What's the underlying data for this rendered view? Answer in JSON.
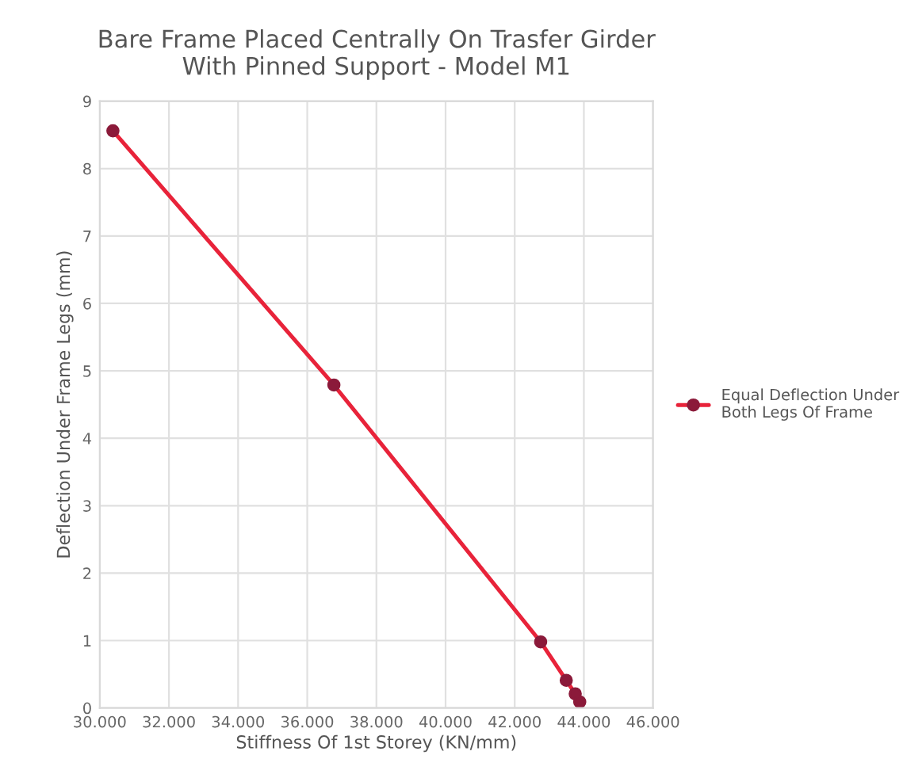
{
  "chart_data": {
    "type": "line",
    "title": "Bare Frame Placed Centrally On Trasfer Girder\nWith Pinned Support - Model M1",
    "xlabel": "Stiffness Of 1st Storey (KN/mm)",
    "ylabel": "Deflection Under Frame Legs (mm)",
    "x": [
      30380,
      36770,
      42750,
      43490,
      43750,
      43880
    ],
    "series": [
      {
        "name": "Equal Deflection Under\nBoth Legs Of Frame",
        "color": "#e8233a",
        "values": [
          8.56,
          4.79,
          0.98,
          0.41,
          0.21,
          0.09
        ]
      }
    ],
    "xlim": [
      30000,
      46000
    ],
    "xticks": [
      {
        "value": 30000,
        "label": "30.000"
      },
      {
        "value": 32000,
        "label": "32.000"
      },
      {
        "value": 34000,
        "label": "34.000"
      },
      {
        "value": 36000,
        "label": "36.000"
      },
      {
        "value": 38000,
        "label": "38.000"
      },
      {
        "value": 40000,
        "label": "40.000"
      },
      {
        "value": 42000,
        "label": "42.000"
      },
      {
        "value": 44000,
        "label": "44.000"
      },
      {
        "value": 46000,
        "label": "46.000"
      }
    ],
    "ylim": [
      0,
      9
    ],
    "yticks": [
      0,
      1,
      2,
      3,
      4,
      5,
      6,
      7,
      8,
      9
    ],
    "grid": true,
    "legend": "right",
    "marker": "circle",
    "line_style": "solid"
  }
}
